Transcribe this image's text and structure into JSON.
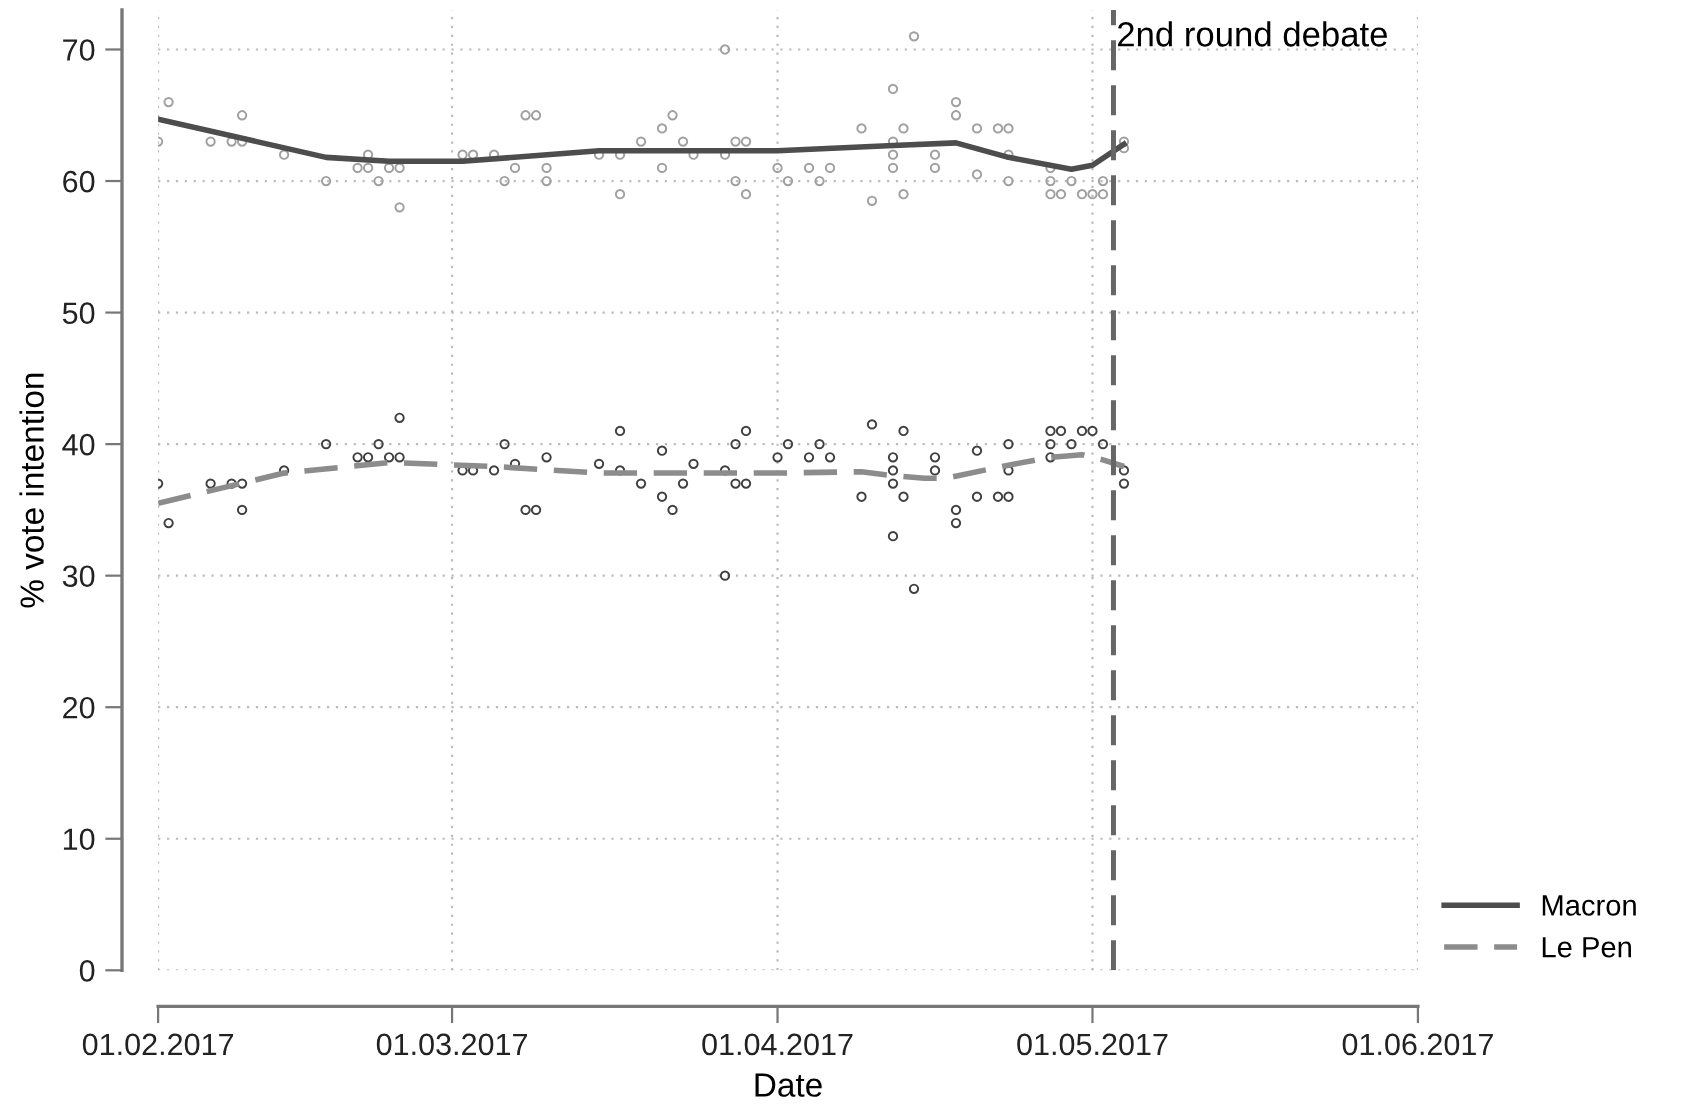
{
  "chart_data": {
    "type": "scatter",
    "xlabel": "Date",
    "ylabel": "% vote intention",
    "xlim": [
      "2017-02-01",
      "2017-06-01"
    ],
    "xticks": [
      {
        "value": "2017-02-01",
        "label": "01.02.2017"
      },
      {
        "value": "2017-03-01",
        "label": "01.03.2017"
      },
      {
        "value": "2017-04-01",
        "label": "01.04.2017"
      },
      {
        "value": "2017-05-01",
        "label": "01.05.2017"
      },
      {
        "value": "2017-06-01",
        "label": "01.06.2017"
      }
    ],
    "ylim": [
      0,
      73
    ],
    "yticks": [
      0,
      10,
      20,
      30,
      40,
      50,
      60,
      70
    ],
    "grid": true,
    "legend": "bottom right",
    "ref_lines": [
      {
        "axis": "x",
        "value": "2017-05-03",
        "label": "2nd round debate",
        "color": "#666666",
        "line_style": "dashed"
      }
    ],
    "series": [
      {
        "color": "#a0a0a0",
        "marker": "circle",
        "x": [
          "2017-02-01",
          "2017-02-02",
          "2017-02-06",
          "2017-02-08",
          "2017-02-09",
          "2017-02-09",
          "2017-02-13",
          "2017-02-17",
          "2017-02-20",
          "2017-02-21",
          "2017-02-21",
          "2017-02-22",
          "2017-02-23",
          "2017-02-24",
          "2017-02-24",
          "2017-03-02",
          "2017-03-03",
          "2017-03-05",
          "2017-03-06",
          "2017-03-07",
          "2017-03-08",
          "2017-03-09",
          "2017-03-10",
          "2017-03-10",
          "2017-03-15",
          "2017-03-17",
          "2017-03-17",
          "2017-03-19",
          "2017-03-21",
          "2017-03-21",
          "2017-03-22",
          "2017-03-23",
          "2017-03-24",
          "2017-03-27",
          "2017-03-27",
          "2017-03-28",
          "2017-03-28",
          "2017-03-29",
          "2017-03-29",
          "2017-04-01",
          "2017-04-02",
          "2017-04-04",
          "2017-04-05",
          "2017-04-06",
          "2017-04-09",
          "2017-04-10",
          "2017-04-12",
          "2017-04-12",
          "2017-04-12",
          "2017-04-12",
          "2017-04-13",
          "2017-04-13",
          "2017-04-14",
          "2017-04-16",
          "2017-04-16",
          "2017-04-18",
          "2017-04-18",
          "2017-04-20",
          "2017-04-20",
          "2017-04-22",
          "2017-04-23",
          "2017-04-23",
          "2017-04-23",
          "2017-04-27",
          "2017-04-27",
          "2017-04-27",
          "2017-04-28",
          "2017-04-29",
          "2017-04-30",
          "2017-05-01",
          "2017-05-02",
          "2017-05-02",
          "2017-05-04",
          "2017-05-04"
        ],
        "values": [
          63,
          66,
          63,
          63,
          65,
          63,
          62,
          60,
          61,
          61,
          62,
          60,
          61,
          61,
          58,
          62,
          62,
          62,
          60,
          61,
          65,
          65,
          61,
          60,
          62,
          62,
          59,
          63,
          64,
          61,
          65,
          63,
          62,
          70,
          62,
          63,
          60,
          63,
          59,
          61,
          60,
          61,
          60,
          61,
          64,
          58.5,
          67,
          63,
          62,
          61,
          64,
          59,
          71,
          62,
          61,
          66,
          65,
          64,
          60.5,
          64,
          64,
          62,
          60,
          61,
          60,
          59,
          59,
          60,
          59,
          59,
          60,
          59,
          62.5,
          63
        ]
      },
      {
        "color": "#404040",
        "marker": "circle",
        "x": [
          "2017-02-01",
          "2017-02-02",
          "2017-02-06",
          "2017-02-08",
          "2017-02-09",
          "2017-02-09",
          "2017-02-13",
          "2017-02-17",
          "2017-02-20",
          "2017-02-21",
          "2017-02-22",
          "2017-02-23",
          "2017-02-24",
          "2017-02-24",
          "2017-03-02",
          "2017-03-03",
          "2017-03-05",
          "2017-03-06",
          "2017-03-07",
          "2017-03-08",
          "2017-03-09",
          "2017-03-10",
          "2017-03-15",
          "2017-03-17",
          "2017-03-17",
          "2017-03-19",
          "2017-03-21",
          "2017-03-21",
          "2017-03-22",
          "2017-03-23",
          "2017-03-24",
          "2017-03-27",
          "2017-03-27",
          "2017-03-28",
          "2017-03-28",
          "2017-03-29",
          "2017-03-29",
          "2017-04-01",
          "2017-04-02",
          "2017-04-04",
          "2017-04-05",
          "2017-04-06",
          "2017-04-09",
          "2017-04-10",
          "2017-04-12",
          "2017-04-12",
          "2017-04-12",
          "2017-04-12",
          "2017-04-13",
          "2017-04-13",
          "2017-04-14",
          "2017-04-16",
          "2017-04-16",
          "2017-04-18",
          "2017-04-18",
          "2017-04-20",
          "2017-04-20",
          "2017-04-22",
          "2017-04-23",
          "2017-04-23",
          "2017-04-23",
          "2017-04-27",
          "2017-04-27",
          "2017-04-27",
          "2017-04-28",
          "2017-04-29",
          "2017-04-30",
          "2017-05-01",
          "2017-05-02",
          "2017-05-04",
          "2017-05-04"
        ],
        "values": [
          37,
          34,
          37,
          37,
          37,
          35,
          38,
          40,
          39,
          39,
          40,
          39,
          39,
          42,
          38,
          38,
          38,
          40,
          38.5,
          35,
          35,
          39,
          38.5,
          41,
          38,
          37,
          39.5,
          36,
          35,
          37,
          38.5,
          30,
          38,
          40,
          37,
          41,
          37,
          39,
          40,
          39,
          40,
          39,
          36,
          41.5,
          39,
          38,
          37,
          33,
          41,
          36,
          29,
          39,
          38,
          35,
          34,
          39.5,
          36,
          36,
          40,
          38,
          36,
          41,
          40,
          39,
          41,
          40,
          41,
          41,
          40,
          38,
          37
        ]
      },
      {
        "type": "line",
        "name": "Macron",
        "color": "#4d4d4d",
        "line_style": "solid",
        "x": [
          "2017-02-01",
          "2017-02-17",
          "2017-02-23",
          "2017-03-02",
          "2017-03-15",
          "2017-04-01",
          "2017-04-12",
          "2017-04-18",
          "2017-04-23",
          "2017-04-29",
          "2017-05-01",
          "2017-05-04"
        ],
        "values": [
          64.7,
          61.8,
          61.5,
          61.5,
          62.3,
          62.3,
          62.7,
          62.9,
          61.8,
          60.9,
          61.2,
          62.8
        ]
      },
      {
        "type": "line",
        "name": "Le Pen",
        "color": "#8c8c8c",
        "line_style": "dashed",
        "x": [
          "2017-02-01",
          "2017-02-13",
          "2017-02-23",
          "2017-03-05",
          "2017-03-15",
          "2017-04-01",
          "2017-04-09",
          "2017-04-12",
          "2017-04-15",
          "2017-04-17",
          "2017-04-23",
          "2017-04-27",
          "2017-04-30",
          "2017-05-02",
          "2017-05-04"
        ],
        "values": [
          35.5,
          37.8,
          38.6,
          38.3,
          37.8,
          37.8,
          37.9,
          37.6,
          37.4,
          37.4,
          38.4,
          39,
          39.2,
          38.8,
          38.3
        ]
      }
    ]
  }
}
